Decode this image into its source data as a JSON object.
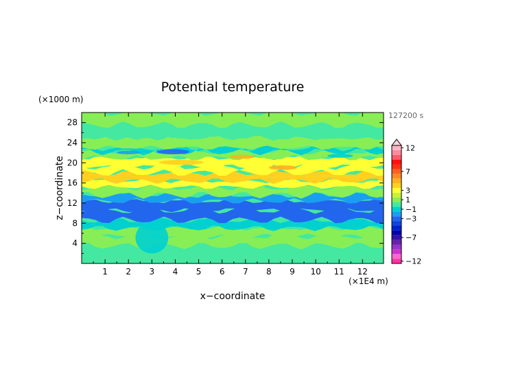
{
  "chart_data": {
    "type": "heatmap",
    "title": "Potential temperature",
    "xlabel": "x−coordinate",
    "ylabel": "z−coordinate",
    "x_unit": "(×1E4 m)",
    "y_unit": "(×1000 m)",
    "time_label": "127200 s",
    "xlim": [
      0,
      12.9
    ],
    "ylim": [
      0,
      30
    ],
    "x_ticks": [
      "1",
      "2",
      "3",
      "4",
      "5",
      "6",
      "7",
      "8",
      "9",
      "10",
      "11",
      "12"
    ],
    "y_ticks": [
      "4",
      "8",
      "12",
      "16",
      "20",
      "24",
      "28"
    ],
    "grid": false,
    "colorbar": {
      "levels": [
        -12,
        -11,
        -10,
        -9,
        -8,
        -7,
        -6,
        -5,
        -4,
        -3,
        -2,
        -1,
        0,
        1,
        2,
        3,
        4,
        5,
        6,
        7,
        8,
        9,
        10,
        11,
        12
      ],
      "labels": [
        "12",
        "7",
        "3",
        "1",
        "−1",
        "−3",
        "−7",
        "−12"
      ],
      "colors": [
        "#ff33aa",
        "#ff66cc",
        "#cc33cc",
        "#9933cc",
        "#6622aa",
        "#3311aa",
        "#0000aa",
        "#0022cc",
        "#1144dd",
        "#2266ee",
        "#1a9ff0",
        "#00d0d0",
        "#44e8a0",
        "#88ee55",
        "#ccf033",
        "#ffff33",
        "#ffd020",
        "#ffb020",
        "#ff8a20",
        "#ff6020",
        "#ff3010",
        "#ff1010",
        "#ff5a6a",
        "#ff8a9a",
        "#ffb3c6"
      ],
      "extend": "max"
    },
    "bands": [
      {
        "z": [
          0.0,
          1.8
        ],
        "value": 0.0
      },
      {
        "z": [
          1.8,
          3.5
        ],
        "value": -0.5
      },
      {
        "z": [
          3.5,
          5.5
        ],
        "value": 0.5
      },
      {
        "z": [
          5.5,
          7.0
        ],
        "value": 1.0
      },
      {
        "z": [
          7.0,
          8.6
        ],
        "value": -1.5
      },
      {
        "z": [
          8.6,
          10.6
        ],
        "value": -3.2
      },
      {
        "z": [
          10.6,
          12.4
        ],
        "value": -3.4
      },
      {
        "z": [
          12.4,
          13.6
        ],
        "value": -2.0
      },
      {
        "z": [
          13.6,
          15.2
        ],
        "value": 0.5
      },
      {
        "z": [
          15.2,
          16.4
        ],
        "value": 2.5
      },
      {
        "z": [
          16.4,
          18.0
        ],
        "value": 3.8
      },
      {
        "z": [
          18.0,
          19.3
        ],
        "value": 2.6
      },
      {
        "z": [
          19.3,
          21.0
        ],
        "value": 3.2
      },
      {
        "z": [
          21.0,
          22.2
        ],
        "value": 1.4
      },
      {
        "z": [
          22.2,
          23.0
        ],
        "value": -1.2
      },
      {
        "z": [
          23.0,
          25.0
        ],
        "value": 0.6
      },
      {
        "z": [
          25.0,
          27.5
        ],
        "value": 0.1
      },
      {
        "z": [
          27.5,
          30.0
        ],
        "value": 0.9
      }
    ],
    "features": [
      {
        "x": [
          3.2,
          4.6
        ],
        "z": [
          21.7,
          22.7
        ],
        "value": -3.5
      },
      {
        "x": [
          1.5,
          2.5
        ],
        "z": [
          21.7,
          22.4
        ],
        "value": -2.0
      },
      {
        "x": [
          6.3,
          7.4
        ],
        "z": [
          20.8,
          21.6
        ],
        "value": 4.5
      },
      {
        "x": [
          8.0,
          9.2
        ],
        "z": [
          18.6,
          19.5
        ],
        "value": 5.0
      },
      {
        "x": [
          10.5,
          11.6
        ],
        "z": [
          21.0,
          21.8
        ],
        "value": -1.5
      },
      {
        "x": [
          2.3,
          3.7
        ],
        "z": [
          2.0,
          8.2
        ],
        "value": -0.8
      },
      {
        "x": [
          6.8,
          12.9
        ],
        "z": [
          16.8,
          17.6
        ],
        "value": 4.0
      },
      {
        "x": [
          3.3,
          5.2
        ],
        "z": [
          19.6,
          20.6
        ],
        "value": 4.2
      }
    ]
  }
}
